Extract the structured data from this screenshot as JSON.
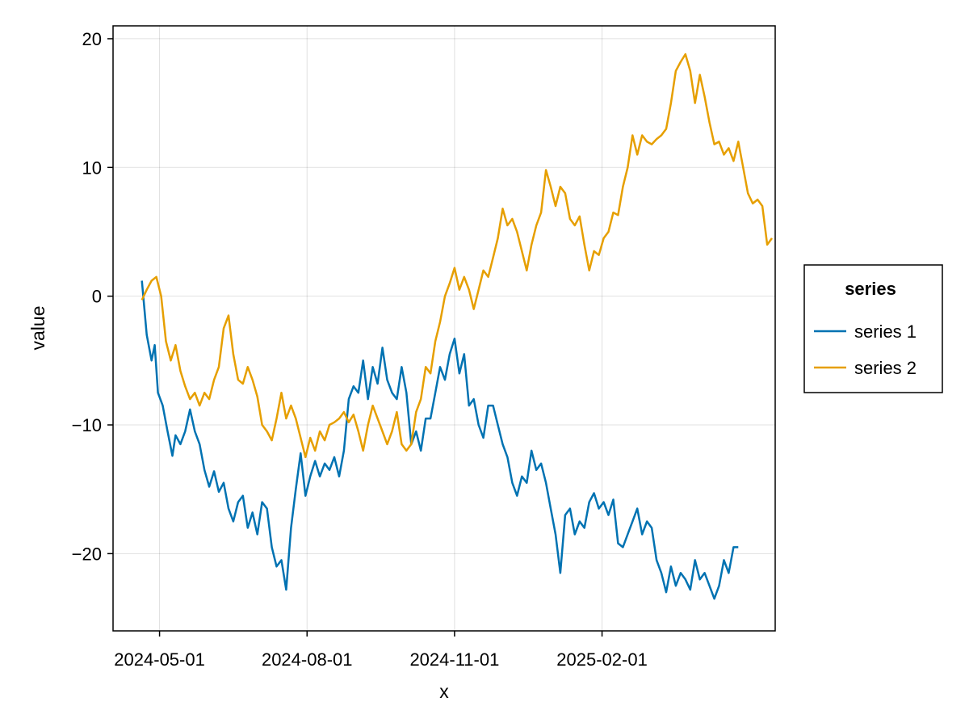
{
  "chart_data": {
    "type": "line",
    "title": "",
    "xlabel": "x",
    "ylabel": "value",
    "x_type": "date",
    "x_range": [
      "2024-04-02",
      "2025-05-20"
    ],
    "y_range": [
      -26,
      21
    ],
    "x_ticks": [
      "2024-05-01",
      "2024-08-01",
      "2024-11-01",
      "2025-02-01"
    ],
    "y_ticks": [
      20,
      10,
      0,
      -10,
      -20
    ],
    "y_tick_labels": [
      "20",
      "10",
      "0",
      "−10",
      "−20"
    ],
    "grid": true,
    "legend": {
      "title": "series",
      "position": "right"
    },
    "series": [
      {
        "name": "series 1",
        "color": "#0072b2",
        "points": [
          [
            "2024-04-20",
            1.2
          ],
          [
            "2024-04-23",
            -3.0
          ],
          [
            "2024-04-26",
            -5.0
          ],
          [
            "2024-04-28",
            -3.8
          ],
          [
            "2024-04-30",
            -7.5
          ],
          [
            "2024-05-03",
            -8.5
          ],
          [
            "2024-05-06",
            -10.5
          ],
          [
            "2024-05-09",
            -12.4
          ],
          [
            "2024-05-11",
            -10.8
          ],
          [
            "2024-05-14",
            -11.5
          ],
          [
            "2024-05-17",
            -10.5
          ],
          [
            "2024-05-20",
            -8.8
          ],
          [
            "2024-05-23",
            -10.5
          ],
          [
            "2024-05-26",
            -11.5
          ],
          [
            "2024-05-29",
            -13.5
          ],
          [
            "2024-06-01",
            -14.8
          ],
          [
            "2024-06-04",
            -13.6
          ],
          [
            "2024-06-07",
            -15.2
          ],
          [
            "2024-06-10",
            -14.5
          ],
          [
            "2024-06-13",
            -16.5
          ],
          [
            "2024-06-16",
            -17.5
          ],
          [
            "2024-06-19",
            -16.0
          ],
          [
            "2024-06-22",
            -15.5
          ],
          [
            "2024-06-25",
            -18.0
          ],
          [
            "2024-06-28",
            -16.8
          ],
          [
            "2024-07-01",
            -18.5
          ],
          [
            "2024-07-04",
            -16.0
          ],
          [
            "2024-07-07",
            -16.5
          ],
          [
            "2024-07-10",
            -19.5
          ],
          [
            "2024-07-13",
            -21.0
          ],
          [
            "2024-07-16",
            -20.5
          ],
          [
            "2024-07-19",
            -22.8
          ],
          [
            "2024-07-22",
            -18.0
          ],
          [
            "2024-07-25",
            -15.0
          ],
          [
            "2024-07-28",
            -12.2
          ],
          [
            "2024-07-31",
            -15.5
          ],
          [
            "2024-08-03",
            -14.0
          ],
          [
            "2024-08-06",
            -12.8
          ],
          [
            "2024-08-09",
            -14.0
          ],
          [
            "2024-08-12",
            -13.0
          ],
          [
            "2024-08-15",
            -13.5
          ],
          [
            "2024-08-18",
            -12.5
          ],
          [
            "2024-08-21",
            -14.0
          ],
          [
            "2024-08-24",
            -12.0
          ],
          [
            "2024-08-27",
            -8.0
          ],
          [
            "2024-08-30",
            -7.0
          ],
          [
            "2024-09-02",
            -7.5
          ],
          [
            "2024-09-05",
            -5.0
          ],
          [
            "2024-09-08",
            -8.0
          ],
          [
            "2024-09-11",
            -5.5
          ],
          [
            "2024-09-14",
            -6.8
          ],
          [
            "2024-09-17",
            -4.0
          ],
          [
            "2024-09-20",
            -6.5
          ],
          [
            "2024-09-23",
            -7.5
          ],
          [
            "2024-09-26",
            -8.0
          ],
          [
            "2024-09-29",
            -5.5
          ],
          [
            "2024-10-02",
            -7.5
          ],
          [
            "2024-10-05",
            -11.5
          ],
          [
            "2024-10-08",
            -10.5
          ],
          [
            "2024-10-11",
            -12.0
          ],
          [
            "2024-10-14",
            -9.5
          ],
          [
            "2024-10-17",
            -9.5
          ],
          [
            "2024-10-20",
            -7.5
          ],
          [
            "2024-10-23",
            -5.5
          ],
          [
            "2024-10-26",
            -6.5
          ],
          [
            "2024-10-29",
            -4.5
          ],
          [
            "2024-11-01",
            -3.3
          ],
          [
            "2024-11-04",
            -6.0
          ],
          [
            "2024-11-07",
            -4.5
          ],
          [
            "2024-11-10",
            -8.5
          ],
          [
            "2024-11-13",
            -8.0
          ],
          [
            "2024-11-16",
            -10.0
          ],
          [
            "2024-11-19",
            -11.0
          ],
          [
            "2024-11-22",
            -8.5
          ],
          [
            "2024-11-25",
            -8.5
          ],
          [
            "2024-11-28",
            -10.0
          ],
          [
            "2024-12-01",
            -11.5
          ],
          [
            "2024-12-04",
            -12.5
          ],
          [
            "2024-12-07",
            -14.5
          ],
          [
            "2024-12-10",
            -15.5
          ],
          [
            "2024-12-13",
            -14.0
          ],
          [
            "2024-12-16",
            -14.5
          ],
          [
            "2024-12-19",
            -12.0
          ],
          [
            "2024-12-22",
            -13.5
          ],
          [
            "2024-12-25",
            -13.0
          ],
          [
            "2024-12-28",
            -14.5
          ],
          [
            "2024-12-31",
            -16.5
          ],
          [
            "2025-01-03",
            -18.5
          ],
          [
            "2025-01-06",
            -21.5
          ],
          [
            "2025-01-09",
            -17.0
          ],
          [
            "2025-01-12",
            -16.5
          ],
          [
            "2025-01-15",
            -18.5
          ],
          [
            "2025-01-18",
            -17.5
          ],
          [
            "2025-01-21",
            -18.0
          ],
          [
            "2025-01-24",
            -16.0
          ],
          [
            "2025-01-27",
            -15.3
          ],
          [
            "2025-01-30",
            -16.5
          ],
          [
            "2025-02-02",
            -16.0
          ],
          [
            "2025-02-05",
            -17.0
          ],
          [
            "2025-02-08",
            -15.8
          ],
          [
            "2025-02-11",
            -19.2
          ],
          [
            "2025-02-14",
            -19.5
          ],
          [
            "2025-02-17",
            -18.5
          ],
          [
            "2025-02-20",
            -17.5
          ],
          [
            "2025-02-23",
            -16.5
          ],
          [
            "2025-02-26",
            -18.5
          ],
          [
            "2025-03-01",
            -17.5
          ],
          [
            "2025-03-04",
            -18.0
          ],
          [
            "2025-03-07",
            -20.5
          ],
          [
            "2025-03-10",
            -21.5
          ],
          [
            "2025-03-13",
            -23.0
          ],
          [
            "2025-03-16",
            -21.0
          ],
          [
            "2025-03-19",
            -22.5
          ],
          [
            "2025-03-22",
            -21.5
          ],
          [
            "2025-03-25",
            -22.0
          ],
          [
            "2025-03-28",
            -22.8
          ],
          [
            "2025-03-31",
            -20.5
          ],
          [
            "2025-04-03",
            -22.0
          ],
          [
            "2025-04-06",
            -21.5
          ],
          [
            "2025-04-09",
            -22.5
          ],
          [
            "2025-04-12",
            -23.5
          ],
          [
            "2025-04-15",
            -22.5
          ],
          [
            "2025-04-18",
            -20.5
          ],
          [
            "2025-04-21",
            -21.5
          ],
          [
            "2025-04-24",
            -19.5
          ],
          [
            "2025-04-27",
            -19.5
          ]
        ]
      },
      {
        "name": "series 2",
        "color": "#e69f00",
        "points": [
          [
            "2024-04-20",
            -0.3
          ],
          [
            "2024-04-23",
            0.5
          ],
          [
            "2024-04-26",
            1.2
          ],
          [
            "2024-04-29",
            1.5
          ],
          [
            "2024-05-02",
            0.0
          ],
          [
            "2024-05-05",
            -3.5
          ],
          [
            "2024-05-08",
            -5.0
          ],
          [
            "2024-05-11",
            -3.8
          ],
          [
            "2024-05-14",
            -5.8
          ],
          [
            "2024-05-17",
            -7.0
          ],
          [
            "2024-05-20",
            -8.0
          ],
          [
            "2024-05-23",
            -7.5
          ],
          [
            "2024-05-26",
            -8.5
          ],
          [
            "2024-05-29",
            -7.5
          ],
          [
            "2024-06-01",
            -8.0
          ],
          [
            "2024-06-04",
            -6.5
          ],
          [
            "2024-06-07",
            -5.5
          ],
          [
            "2024-06-10",
            -2.5
          ],
          [
            "2024-06-13",
            -1.5
          ],
          [
            "2024-06-16",
            -4.5
          ],
          [
            "2024-06-19",
            -6.5
          ],
          [
            "2024-06-22",
            -6.8
          ],
          [
            "2024-06-25",
            -5.5
          ],
          [
            "2024-06-28",
            -6.5
          ],
          [
            "2024-07-01",
            -7.8
          ],
          [
            "2024-07-04",
            -10.0
          ],
          [
            "2024-07-07",
            -10.5
          ],
          [
            "2024-07-10",
            -11.2
          ],
          [
            "2024-07-13",
            -9.5
          ],
          [
            "2024-07-16",
            -7.5
          ],
          [
            "2024-07-19",
            -9.5
          ],
          [
            "2024-07-22",
            -8.5
          ],
          [
            "2024-07-25",
            -9.5
          ],
          [
            "2024-07-28",
            -11.0
          ],
          [
            "2024-07-31",
            -12.5
          ],
          [
            "2024-08-03",
            -11.0
          ],
          [
            "2024-08-06",
            -12.0
          ],
          [
            "2024-08-09",
            -10.5
          ],
          [
            "2024-08-12",
            -11.2
          ],
          [
            "2024-08-15",
            -10.0
          ],
          [
            "2024-08-18",
            -9.8
          ],
          [
            "2024-08-21",
            -9.5
          ],
          [
            "2024-08-24",
            -9.0
          ],
          [
            "2024-08-27",
            -9.8
          ],
          [
            "2024-08-30",
            -9.2
          ],
          [
            "2024-09-02",
            -10.5
          ],
          [
            "2024-09-05",
            -12.0
          ],
          [
            "2024-09-08",
            -10.0
          ],
          [
            "2024-09-11",
            -8.5
          ],
          [
            "2024-09-14",
            -9.5
          ],
          [
            "2024-09-17",
            -10.5
          ],
          [
            "2024-09-20",
            -11.5
          ],
          [
            "2024-09-23",
            -10.5
          ],
          [
            "2024-09-26",
            -9.0
          ],
          [
            "2024-09-29",
            -11.5
          ],
          [
            "2024-10-02",
            -12.0
          ],
          [
            "2024-10-05",
            -11.5
          ],
          [
            "2024-10-08",
            -9.0
          ],
          [
            "2024-10-11",
            -8.0
          ],
          [
            "2024-10-14",
            -5.5
          ],
          [
            "2024-10-17",
            -6.0
          ],
          [
            "2024-10-20",
            -3.5
          ],
          [
            "2024-10-23",
            -2.0
          ],
          [
            "2024-10-26",
            0.0
          ],
          [
            "2024-10-29",
            1.0
          ],
          [
            "2024-11-01",
            2.2
          ],
          [
            "2024-11-04",
            0.5
          ],
          [
            "2024-11-07",
            1.5
          ],
          [
            "2024-11-10",
            0.5
          ],
          [
            "2024-11-13",
            -1.0
          ],
          [
            "2024-11-16",
            0.5
          ],
          [
            "2024-11-19",
            2.0
          ],
          [
            "2024-11-22",
            1.5
          ],
          [
            "2024-11-25",
            3.0
          ],
          [
            "2024-11-28",
            4.5
          ],
          [
            "2024-12-01",
            6.8
          ],
          [
            "2024-12-04",
            5.5
          ],
          [
            "2024-12-07",
            6.0
          ],
          [
            "2024-12-10",
            5.0
          ],
          [
            "2024-12-13",
            3.5
          ],
          [
            "2024-12-16",
            2.0
          ],
          [
            "2024-12-19",
            4.0
          ],
          [
            "2024-12-22",
            5.5
          ],
          [
            "2024-12-25",
            6.5
          ],
          [
            "2024-12-28",
            9.8
          ],
          [
            "2024-12-31",
            8.5
          ],
          [
            "2025-01-03",
            7.0
          ],
          [
            "2025-01-06",
            8.5
          ],
          [
            "2025-01-09",
            8.0
          ],
          [
            "2025-01-12",
            6.0
          ],
          [
            "2025-01-15",
            5.5
          ],
          [
            "2025-01-18",
            6.2
          ],
          [
            "2025-01-21",
            4.0
          ],
          [
            "2025-01-24",
            2.0
          ],
          [
            "2025-01-27",
            3.5
          ],
          [
            "2025-01-30",
            3.2
          ],
          [
            "2025-02-02",
            4.5
          ],
          [
            "2025-02-05",
            5.0
          ],
          [
            "2025-02-08",
            6.5
          ],
          [
            "2025-02-11",
            6.3
          ],
          [
            "2025-02-14",
            8.5
          ],
          [
            "2025-02-17",
            10.0
          ],
          [
            "2025-02-20",
            12.5
          ],
          [
            "2025-02-23",
            11.0
          ],
          [
            "2025-02-26",
            12.5
          ],
          [
            "2025-03-01",
            12.0
          ],
          [
            "2025-03-04",
            11.8
          ],
          [
            "2025-03-07",
            12.2
          ],
          [
            "2025-03-10",
            12.5
          ],
          [
            "2025-03-13",
            13.0
          ],
          [
            "2025-03-16",
            15.0
          ],
          [
            "2025-03-19",
            17.5
          ],
          [
            "2025-03-22",
            18.2
          ],
          [
            "2025-03-25",
            18.8
          ],
          [
            "2025-03-28",
            17.5
          ],
          [
            "2025-03-31",
            15.0
          ],
          [
            "2025-04-03",
            17.2
          ],
          [
            "2025-04-06",
            15.5
          ],
          [
            "2025-04-09",
            13.5
          ],
          [
            "2025-04-12",
            11.8
          ],
          [
            "2025-04-15",
            12.0
          ],
          [
            "2025-04-18",
            11.0
          ],
          [
            "2025-04-21",
            11.5
          ],
          [
            "2025-04-24",
            10.5
          ],
          [
            "2025-04-27",
            12.0
          ],
          [
            "2025-04-30",
            10.0
          ],
          [
            "2025-05-03",
            8.0
          ],
          [
            "2025-05-06",
            7.2
          ],
          [
            "2025-05-09",
            7.5
          ],
          [
            "2025-05-12",
            7.0
          ],
          [
            "2025-05-15",
            4.0
          ],
          [
            "2025-05-18",
            4.5
          ]
        ]
      }
    ]
  }
}
